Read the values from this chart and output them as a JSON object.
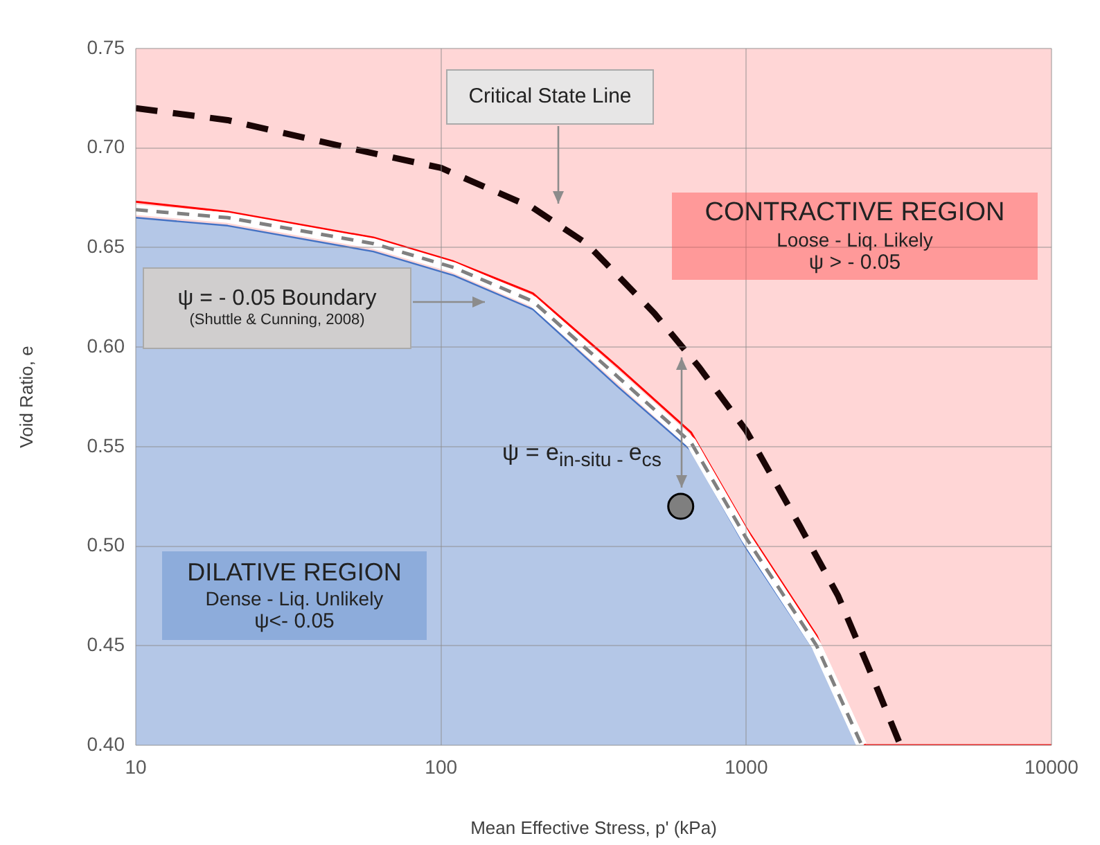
{
  "chart_data": {
    "type": "area",
    "xlabel": "Mean Effective Stress, p' (kPa)",
    "ylabel": "Void Ratio, e",
    "log": "x",
    "grid": true,
    "legend": false,
    "xlim": [
      10,
      10000
    ],
    "xticks": [
      10,
      100,
      1000,
      10000
    ],
    "ylim": [
      0.4,
      0.75
    ],
    "yticks": [
      {
        "value": 0.4,
        "label": "0.40"
      },
      {
        "value": 0.45,
        "label": "0.45"
      },
      {
        "value": 0.5,
        "label": "0.50"
      },
      {
        "value": 0.55,
        "label": "0.55"
      },
      {
        "value": 0.6,
        "label": "0.60"
      },
      {
        "value": 0.65,
        "label": "0.65"
      },
      {
        "value": 0.7,
        "label": "0.70"
      },
      {
        "value": 0.75,
        "label": "0.75"
      }
    ],
    "series": [
      {
        "type": "line",
        "color": "#ff0000",
        "line_style": "solid",
        "marker": "none",
        "x": [
          10,
          20,
          60,
          110,
          200,
          380,
          660,
          1000,
          1700,
          2450,
          10000
        ],
        "values": [
          0.673,
          0.668,
          0.655,
          0.643,
          0.627,
          0.59,
          0.557,
          0.509,
          0.455,
          0.4,
          0.4
        ]
      },
      {
        "color": "#4472c4",
        "x": [
          10,
          20,
          60,
          110,
          200,
          380,
          660,
          1000,
          1700,
          2330
        ],
        "values": [
          0.665,
          0.661,
          0.648,
          0.636,
          0.619,
          0.58,
          0.548,
          0.499,
          0.446,
          0.4
        ]
      },
      {
        "type": "line",
        "color": "#808080",
        "line_style": "dashed",
        "marker": "none",
        "x": [
          10,
          20,
          60,
          110,
          200,
          380,
          660,
          1000,
          1700,
          2390
        ],
        "values": [
          0.669,
          0.665,
          0.652,
          0.64,
          0.623,
          0.585,
          0.552,
          0.504,
          0.45,
          0.4
        ]
      },
      {
        "type": "line",
        "color": "#1a0505",
        "line_style": "dashed",
        "marker": "none",
        "x": [
          10,
          20,
          50,
          100,
          200,
          300,
          500,
          700,
          1000,
          1500,
          2000,
          2500,
          3200
        ],
        "values": [
          0.72,
          0.714,
          0.7,
          0.69,
          0.67,
          0.652,
          0.617,
          0.59,
          0.558,
          0.51,
          0.475,
          0.44,
          0.4
        ]
      },
      {
        "type": "scatter",
        "color": "#7f7f7f",
        "marker": "circle",
        "x": [
          610
        ],
        "values": [
          0.52
        ]
      }
    ],
    "bands": [
      {
        "axis": "y",
        "from": 0.4,
        "to": 0.75,
        "color": "#ffd6d6"
      }
    ],
    "annotations": [
      "Critical State Line",
      "ψ = - 0.05 Boundary\n(Shuttle & Cunning, 2008)",
      "CONTRACTIVE REGION\nLoose - Liq. Likely\nψ > - 0.05",
      "DILATIVE REGION\nDense - Liq. Unlikely\nψ<- 0.05",
      "ψ = e$_{in-situ - }$e$_{cs}$"
    ]
  }
}
